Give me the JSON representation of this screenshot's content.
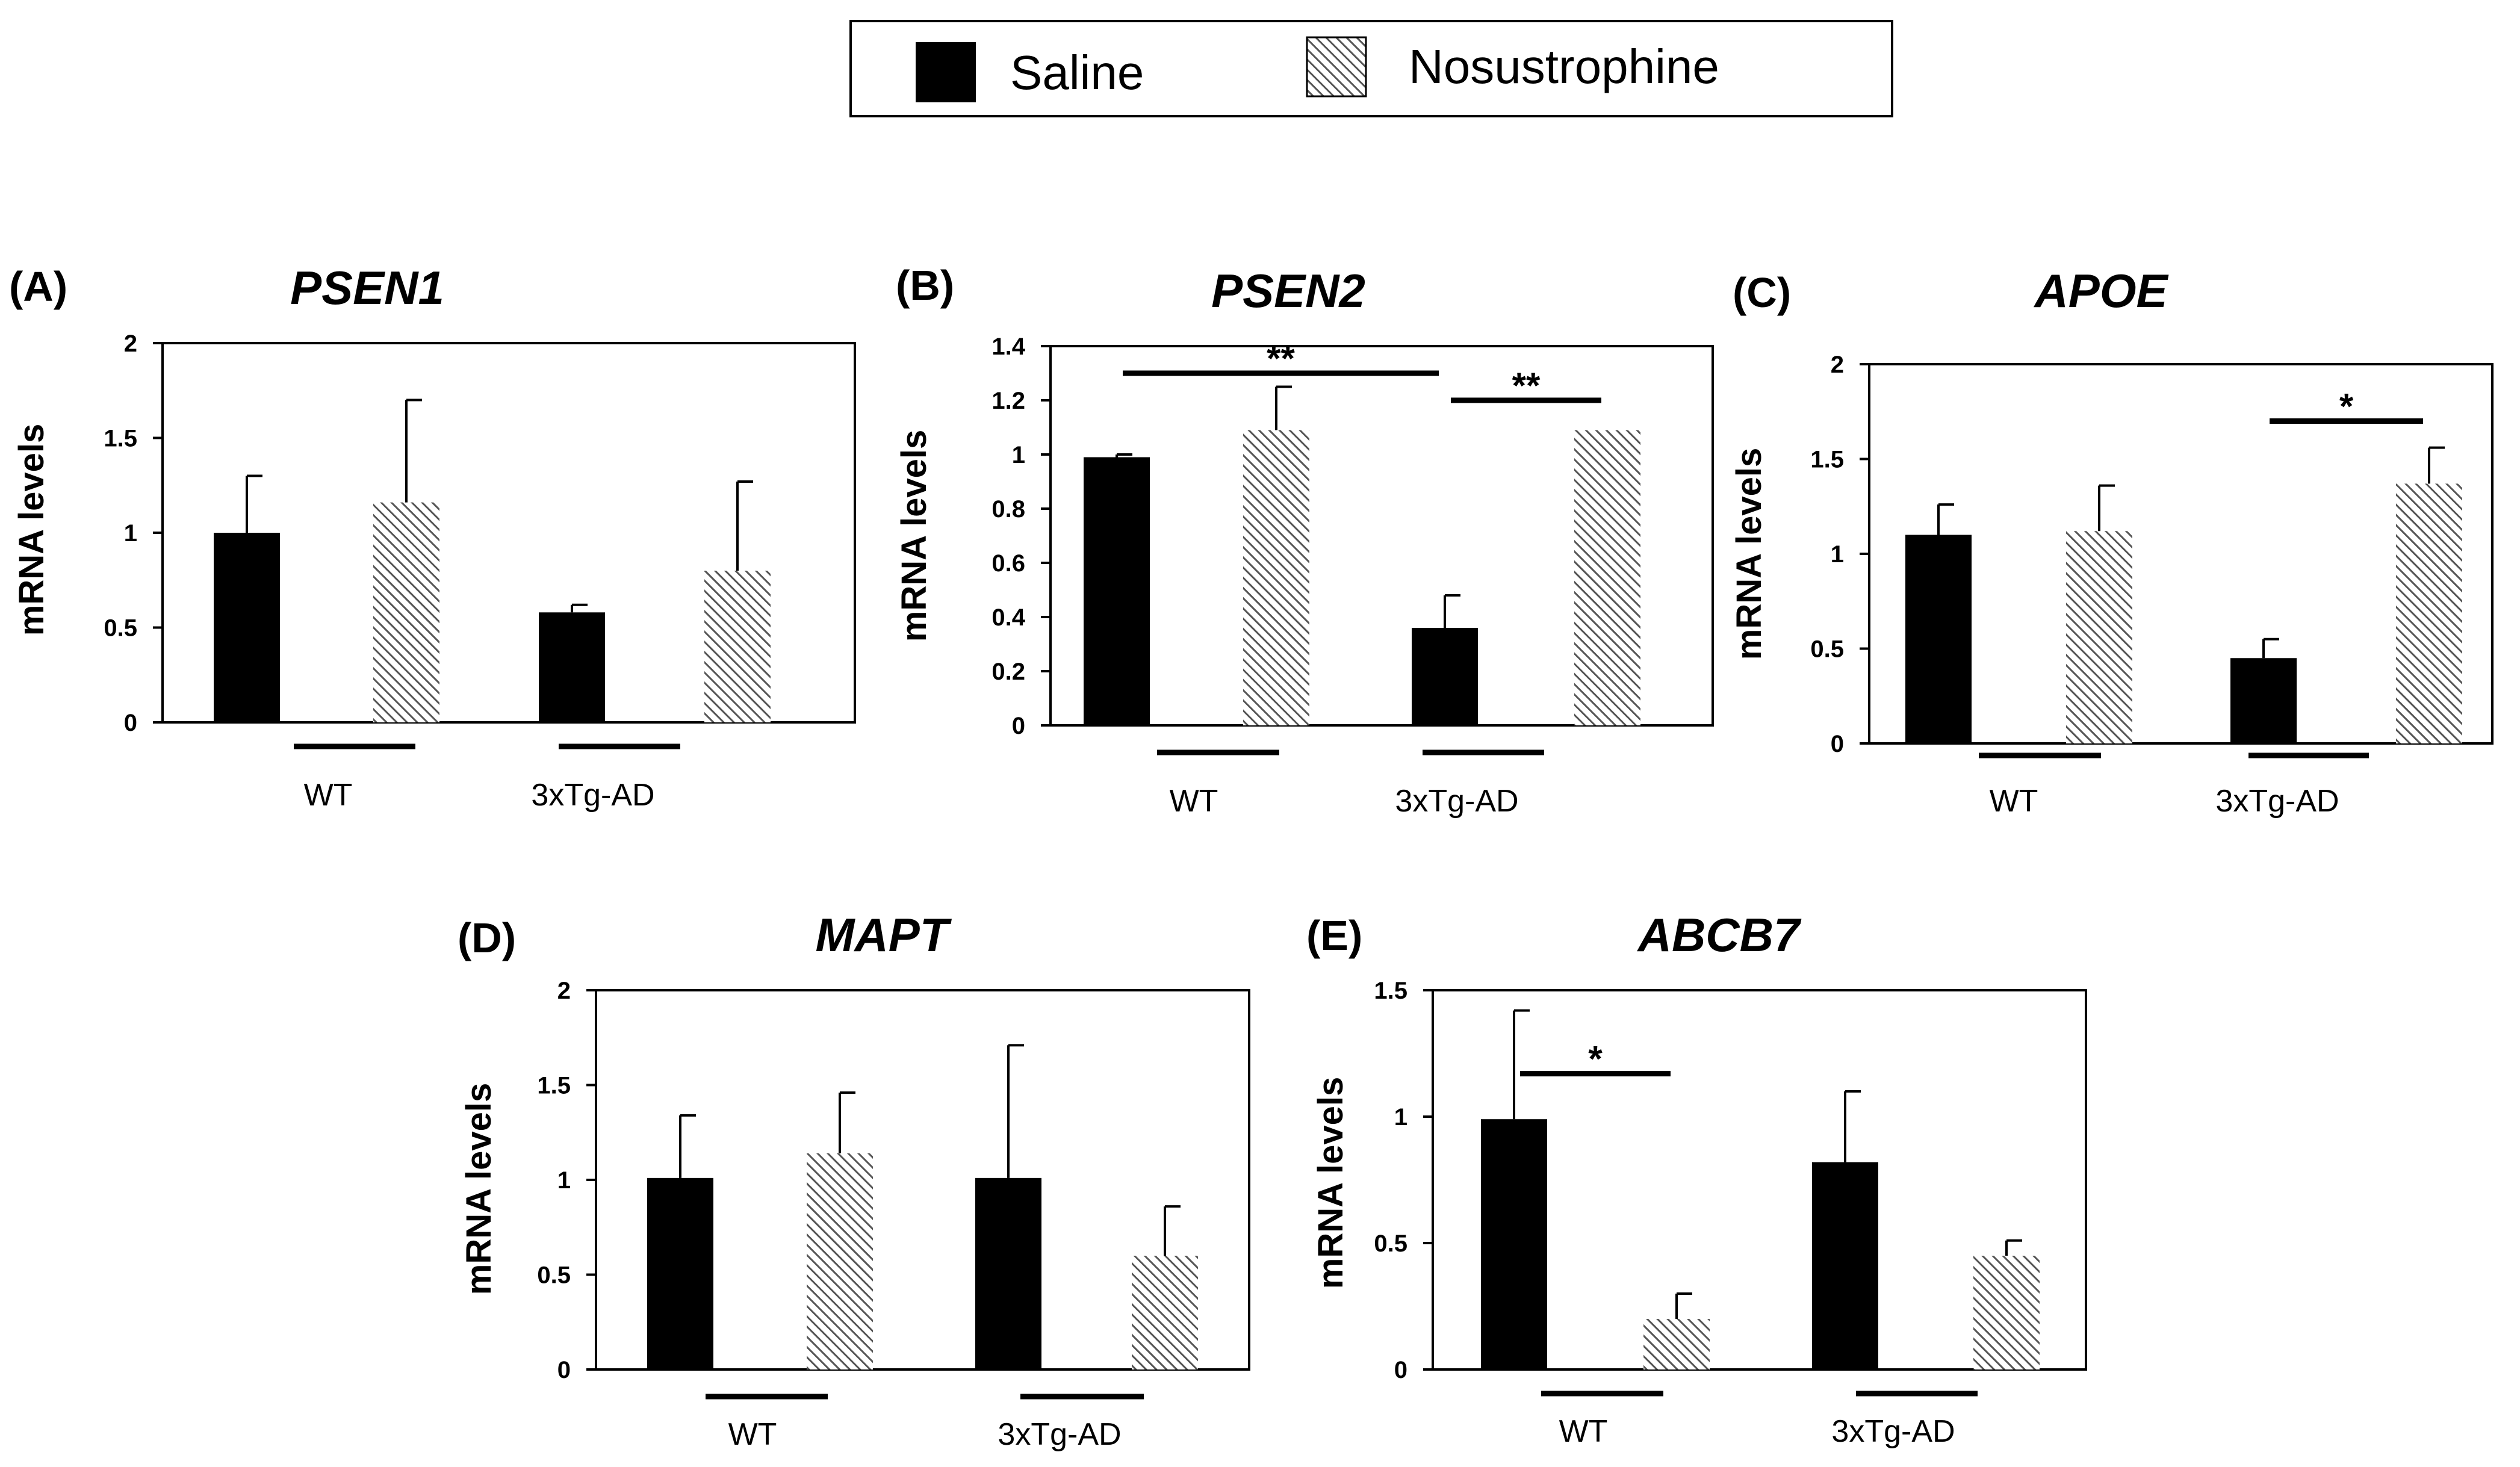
{
  "legend": {
    "saline_label": "Saline",
    "nosustrophine_label": "Nosustrophine",
    "saline_color": "#000000",
    "hatch_color": "#555555"
  },
  "chart_data": [
    {
      "type": "bar",
      "panel": "(A)",
      "title": "PSEN1",
      "xlabel": "",
      "ylabel": "mRNA levels",
      "categories": [
        "WT",
        "3xTg-AD"
      ],
      "ylim": [
        0,
        2
      ],
      "yticks": [
        {
          "v": 0,
          "label": "0"
        },
        {
          "v": 0.5,
          "label": "0.5"
        },
        {
          "v": 1,
          "label": "1"
        },
        {
          "v": 1.5,
          "label": "1.5"
        },
        {
          "v": 2,
          "label": "2"
        }
      ],
      "series": [
        {
          "name": "Saline",
          "values": [
            1.0,
            0.58
          ],
          "errors": [
            0.3,
            0.04
          ]
        },
        {
          "name": "Nosustrophine",
          "values": [
            1.16,
            0.8
          ],
          "errors": [
            0.54,
            0.47
          ]
        }
      ],
      "significance": []
    },
    {
      "type": "bar",
      "panel": "(B)",
      "title": "PSEN2",
      "xlabel": "",
      "ylabel": "mRNA levels",
      "categories": [
        "WT",
        "3xTg-AD"
      ],
      "ylim": [
        0,
        1.4
      ],
      "yticks": [
        {
          "v": 0,
          "label": "0"
        },
        {
          "v": 0.2,
          "label": "0.2"
        },
        {
          "v": 0.4,
          "label": "0.4"
        },
        {
          "v": 0.6,
          "label": "0.6"
        },
        {
          "v": 0.8,
          "label": "0.8"
        },
        {
          "v": 1,
          "label": "1"
        },
        {
          "v": 1.2,
          "label": "1.2"
        },
        {
          "v": 1.4,
          "label": "1.4"
        }
      ],
      "series": [
        {
          "name": "Saline",
          "values": [
            0.99,
            0.36
          ],
          "errors": [
            0.01,
            0.12
          ]
        },
        {
          "name": "Nosustrophine",
          "values": [
            1.09,
            1.09
          ],
          "errors": [
            0.16,
            0.0
          ]
        }
      ],
      "significance": [
        {
          "from": 0,
          "to": 2,
          "y": 1.3,
          "label": "**"
        },
        {
          "from": 2,
          "to": 3,
          "y": 1.2,
          "label": "**"
        }
      ]
    },
    {
      "type": "bar",
      "panel": "(C)",
      "title": "APOE",
      "xlabel": "",
      "ylabel": "mRNA levels",
      "categories": [
        "WT",
        "3xTg-AD"
      ],
      "ylim": [
        0,
        2
      ],
      "yticks": [
        {
          "v": 0,
          "label": "0"
        },
        {
          "v": 0.5,
          "label": "0.5"
        },
        {
          "v": 1,
          "label": "1"
        },
        {
          "v": 1.5,
          "label": "1.5"
        },
        {
          "v": 2,
          "label": "2"
        }
      ],
      "series": [
        {
          "name": "Saline",
          "values": [
            1.1,
            0.45
          ],
          "errors": [
            0.16,
            0.1
          ]
        },
        {
          "name": "Nosustrophine",
          "values": [
            1.12,
            1.37
          ],
          "errors": [
            0.24,
            0.19
          ]
        }
      ],
      "significance": [
        {
          "from": 2,
          "to": 3,
          "y": 1.7,
          "label": "*"
        }
      ]
    },
    {
      "type": "bar",
      "panel": "(D)",
      "title": "MAPT",
      "xlabel": "",
      "ylabel": "mRNA levels",
      "categories": [
        "WT",
        "3xTg-AD"
      ],
      "ylim": [
        0,
        2
      ],
      "yticks": [
        {
          "v": 0,
          "label": "0"
        },
        {
          "v": 0.5,
          "label": "0.5"
        },
        {
          "v": 1,
          "label": "1"
        },
        {
          "v": 1.5,
          "label": "1.5"
        },
        {
          "v": 2,
          "label": "2"
        }
      ],
      "series": [
        {
          "name": "Saline",
          "values": [
            1.01,
            1.01
          ],
          "errors": [
            0.33,
            0.7
          ]
        },
        {
          "name": "Nosustrophine",
          "values": [
            1.14,
            0.6
          ],
          "errors": [
            0.32,
            0.26
          ]
        }
      ],
      "significance": []
    },
    {
      "type": "bar",
      "panel": "(E)",
      "title": "ABCB7",
      "xlabel": "",
      "ylabel": "mRNA levels",
      "categories": [
        "WT",
        "3xTg-AD"
      ],
      "ylim": [
        0,
        1.5
      ],
      "yticks": [
        {
          "v": 0,
          "label": "0"
        },
        {
          "v": 0.5,
          "label": "0.5"
        },
        {
          "v": 1,
          "label": "1"
        },
        {
          "v": 1.5,
          "label": "1.5"
        }
      ],
      "series": [
        {
          "name": "Saline",
          "values": [
            0.99,
            0.82
          ],
          "errors": [
            0.43,
            0.28
          ]
        },
        {
          "name": "Nosustrophine",
          "values": [
            0.2,
            0.45
          ],
          "errors": [
            0.1,
            0.06
          ]
        }
      ],
      "significance": [
        {
          "from": 0,
          "to": 1,
          "y": 1.17,
          "label": "*"
        }
      ]
    }
  ]
}
